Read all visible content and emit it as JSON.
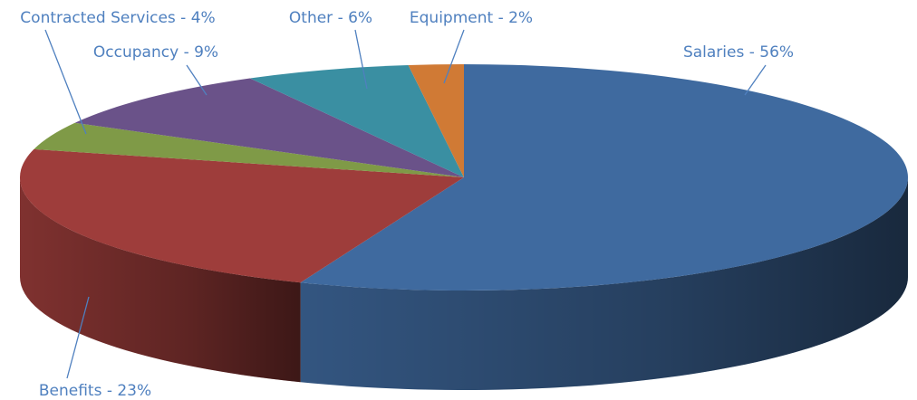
{
  "chart_data": {
    "type": "pie3d",
    "values": [
      56,
      23,
      4,
      9,
      6,
      2
    ],
    "value_labels": [
      "Salaries - 56%",
      "Benefits - 23%",
      "Contracted Services - 4%",
      "Occupancy - 9%",
      "Other - 6%",
      "Equipment - 2%"
    ],
    "colors": [
      "#3f6a9f",
      "#9e3d3b",
      "#7f9a47",
      "#6a5289",
      "#3a8fa2",
      "#d07a35"
    ]
  }
}
